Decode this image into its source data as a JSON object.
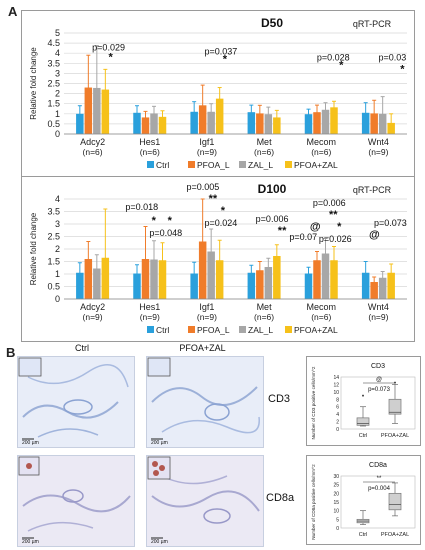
{
  "panels": {
    "a_letter": "A",
    "b_letter": "B"
  },
  "chart_data": [
    {
      "type": "bar",
      "title": "D50",
      "subtitle": "qRT-PCR",
      "ylabel": "Relative fold change",
      "ylim": [
        0,
        5
      ],
      "yticks": [
        "0",
        "0.5",
        "1",
        "1.5",
        "2",
        "2.5",
        "3",
        "3.5",
        "4",
        "4.5",
        "5"
      ],
      "categories": [
        "Adcy2",
        "Hes1",
        "Igf1",
        "Met",
        "Mecom",
        "Wnt4"
      ],
      "category_n": [
        "(n=6)",
        "(n=6)",
        "(n=9)",
        "(n=6)",
        "(n=6)",
        "(n=9)"
      ],
      "series": [
        {
          "name": "Ctrl",
          "color": "#2aa0dc",
          "values": [
            1.0,
            1.05,
            1.1,
            1.08,
            0.98,
            1.05
          ],
          "err": [
            0.4,
            0.35,
            0.5,
            0.35,
            0.25,
            0.5
          ]
        },
        {
          "name": "PFOA_L",
          "color": "#f07c2a",
          "values": [
            2.3,
            0.82,
            1.42,
            1.02,
            1.08,
            1.02
          ],
          "err": [
            1.6,
            0.3,
            1.0,
            0.4,
            0.35,
            0.65
          ]
        },
        {
          "name": "ZAL_L",
          "color": "#a7a7a7",
          "values": [
            2.28,
            1.02,
            1.1,
            0.98,
            1.2,
            1.0
          ],
          "err": [
            2.1,
            0.35,
            0.4,
            0.35,
            0.35,
            0.85
          ]
        },
        {
          "name": "PFOA+ZAL",
          "color": "#f6c11a",
          "values": [
            2.2,
            0.85,
            1.75,
            0.82,
            1.32,
            0.55
          ],
          "err": [
            1.0,
            0.3,
            0.55,
            0.35,
            0.3,
            0.45
          ]
        }
      ],
      "annotations": [
        {
          "text": "p=0.029",
          "cat": 0
        },
        {
          "text": "*",
          "cat": 0
        },
        {
          "text": "p=0.037",
          "cat": 2
        },
        {
          "text": "*",
          "cat": 2
        },
        {
          "text": "p=0.028",
          "cat": 4
        },
        {
          "text": "*",
          "cat": 4
        },
        {
          "text": "p=0.03",
          "cat": 5
        },
        {
          "text": "*",
          "cat": 5
        }
      ],
      "legend": [
        "Ctrl",
        "PFOA_L",
        "ZAL_L",
        "PFOA+ZAL"
      ],
      "legend_position": "bottom"
    },
    {
      "type": "bar",
      "title": "D100",
      "subtitle": "qRT-PCR",
      "ylabel": "Relative fold change",
      "ylim": [
        0,
        4
      ],
      "yticks": [
        "0",
        "0.5",
        "1",
        "1.5",
        "2",
        "2.5",
        "3",
        "3.5",
        "4"
      ],
      "categories": [
        "Adcy2",
        "Hes1",
        "Igf1",
        "Met",
        "Mecom",
        "Wnt4"
      ],
      "category_n": [
        "(n=9)",
        "(n=9)",
        "(n=9)",
        "(n=6)",
        "(n=6)",
        "(n=9)"
      ],
      "series": [
        {
          "name": "Ctrl",
          "color": "#2aa0dc",
          "values": [
            1.05,
            1.02,
            1.02,
            1.05,
            1.02,
            1.05
          ],
          "err": [
            0.4,
            0.35,
            0.45,
            0.3,
            0.25,
            0.45
          ]
        },
        {
          "name": "PFOA_L",
          "color": "#f07c2a",
          "values": [
            1.6,
            1.6,
            2.3,
            1.15,
            1.55,
            0.68
          ],
          "err": [
            0.7,
            1.3,
            1.9,
            0.35,
            0.35,
            0.2
          ]
        },
        {
          "name": "ZAL_L",
          "color": "#a7a7a7",
          "values": [
            1.22,
            1.58,
            1.9,
            1.28,
            1.82,
            0.85
          ],
          "err": [
            0.55,
            0.75,
            0.9,
            0.35,
            0.6,
            0.25
          ]
        },
        {
          "name": "PFOA+ZAL",
          "color": "#f6c11a",
          "values": [
            1.65,
            1.55,
            1.55,
            1.72,
            1.55,
            1.05
          ],
          "err": [
            1.95,
            0.7,
            0.8,
            0.45,
            0.55,
            0.35
          ]
        }
      ],
      "annotations": [
        {
          "text": "p=0.018",
          "cat": 1
        },
        {
          "text": "*",
          "cat": 1
        },
        {
          "text": "*",
          "cat": 1
        },
        {
          "text": "p=0.048",
          "cat": 1
        },
        {
          "text": "p=0.005",
          "cat": 2
        },
        {
          "text": "**",
          "cat": 2
        },
        {
          "text": "*",
          "cat": 2
        },
        {
          "text": "p=0.024",
          "cat": 2
        },
        {
          "text": "p=0.006",
          "cat": 3
        },
        {
          "text": "**",
          "cat": 3
        },
        {
          "text": "p=0.006",
          "cat": 4
        },
        {
          "text": "**",
          "cat": 4
        },
        {
          "text": "@",
          "cat": 4
        },
        {
          "text": "p=0.07",
          "cat": 4
        },
        {
          "text": "*",
          "cat": 4
        },
        {
          "text": "p=0.026",
          "cat": 4
        },
        {
          "text": "p=0.073",
          "cat": 5
        },
        {
          "text": "@",
          "cat": 5
        }
      ],
      "legend": [
        "Ctrl",
        "PFOA_L",
        "ZAL_L",
        "PFOA+ZAL"
      ],
      "legend_position": "bottom"
    },
    {
      "type": "box",
      "title": "CD3",
      "ylabel": "Number of CD3 positive cells/mm^2",
      "ylim": [
        0,
        14
      ],
      "yticks": [
        "0",
        "2",
        "4",
        "6",
        "8",
        "10",
        "12",
        "14"
      ],
      "categories": [
        "Ctrl",
        "PFOA+ZAL"
      ],
      "boxes": [
        {
          "min": 0.8,
          "q1": 1.0,
          "median": 1.5,
          "q3": 3.0,
          "max": 6.0,
          "outliers": [
            9.0
          ]
        },
        {
          "min": 1.5,
          "q1": 4.0,
          "median": 4.5,
          "q3": 8.0,
          "max": 12.0,
          "outliers": [
            12.5
          ]
        }
      ],
      "annotations": [
        "@",
        "p=0.073"
      ]
    },
    {
      "type": "box",
      "title": "CD8a",
      "ylabel": "Number of CD8a positive cells/mm^2",
      "ylim": [
        0,
        30
      ],
      "yticks": [
        "0",
        "5",
        "10",
        "15",
        "20",
        "25",
        "30"
      ],
      "categories": [
        "Ctrl",
        "PFOA+ZAL"
      ],
      "boxes": [
        {
          "min": 2.0,
          "q1": 3.0,
          "median": 4.0,
          "q3": 5.0,
          "max": 10.0,
          "outliers": []
        },
        {
          "min": 7.0,
          "q1": 10.5,
          "median": 13.5,
          "q3": 20.0,
          "max": 26.0,
          "outliers": []
        }
      ],
      "annotations": [
        "**",
        "p=0.004"
      ]
    }
  ],
  "histology": {
    "col_labels": [
      "Ctrl",
      "PFOA+ZAL"
    ],
    "row_labels": [
      "CD3",
      "CD8a"
    ],
    "scale_labels": [
      "200 µm",
      "200 µm",
      "200 µm",
      "200 µm"
    ]
  }
}
